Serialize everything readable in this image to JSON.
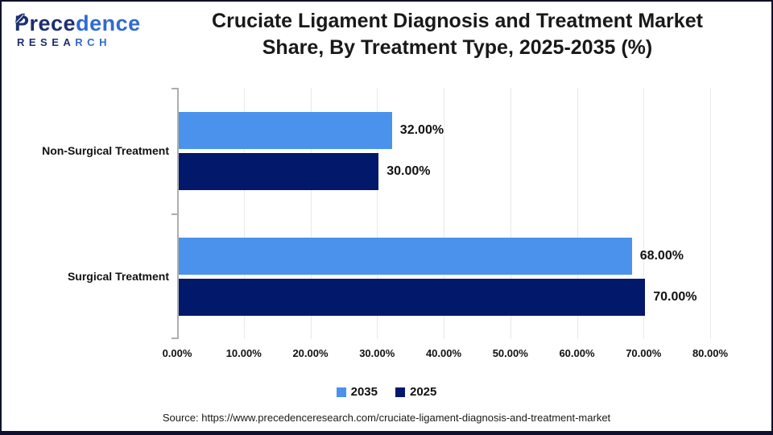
{
  "header": {
    "logo": {
      "name": "Precedence",
      "subtitle": "RESEARCH"
    },
    "title_line1": "Cruciate Ligament Diagnosis and Treatment Market",
    "title_line2": "Share, By Treatment Type, 2025-2035 (%)"
  },
  "chart_data": {
    "type": "bar",
    "orientation": "horizontal",
    "title": "Cruciate Ligament Diagnosis and Treatment Market Share, By Treatment Type, 2025-2035 (%)",
    "categories": [
      "Non-Surgical Treatment",
      "Surgical Treatment"
    ],
    "series": [
      {
        "name": "2035",
        "color": "#4a92ec",
        "values": [
          32.0,
          68.0
        ],
        "labels": [
          "32.00%",
          "68.00%"
        ]
      },
      {
        "name": "2025",
        "color": "#02186a",
        "values": [
          30.0,
          70.0
        ],
        "labels": [
          "30.00%",
          "70.00%"
        ]
      }
    ],
    "xlim": [
      0,
      80
    ],
    "x_ticks": [
      "0.00%",
      "10.00%",
      "20.00%",
      "30.00%",
      "40.00%",
      "50.00%",
      "60.00%",
      "70.00%",
      "80.00%"
    ],
    "grid": true,
    "legend_position": "bottom",
    "axis_color": "#aeaeae",
    "gridline_color": "#e9e9e9",
    "logo_dark_color": "#1c2f6e",
    "logo_bright_color": "#2f6bd0"
  },
  "footer": {
    "source": "Source: https://www.precedenceresearch.com/cruciate-ligament-diagnosis-and-treatment-market"
  }
}
